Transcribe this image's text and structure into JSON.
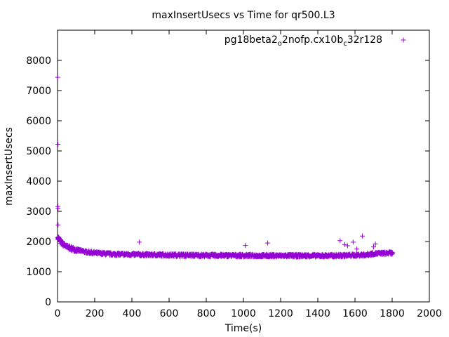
{
  "chart_data": {
    "type": "scatter",
    "title": "maxInsertUsecs vs Time for qr500.L3",
    "xlabel": "Time(s)",
    "ylabel": "maxInsertUsecs",
    "xlim": [
      0,
      2000
    ],
    "ylim": [
      0,
      9000
    ],
    "x_ticks": [
      0,
      200,
      400,
      600,
      800,
      1000,
      1200,
      1400,
      1600,
      1800,
      2000
    ],
    "y_ticks": [
      0,
      1000,
      2000,
      3000,
      4000,
      5000,
      6000,
      7000,
      8000
    ],
    "grid": false,
    "legend_position": "top-right",
    "marker": "plus",
    "series": [
      {
        "name": "pg18beta2_o2nofp.cx10b_c32r128",
        "legend": {
          "base": "pg18beta2",
          "sub1": "o",
          "mid": "2nofp.cx10b",
          "sub2": "c",
          "tail": "32r128"
        },
        "color": "#9400d3",
        "outliers": [
          [
            1,
            7440
          ],
          [
            2,
            5220
          ],
          [
            2,
            3160
          ],
          [
            3,
            3100
          ],
          [
            3,
            2550
          ],
          [
            5,
            2140
          ],
          [
            6,
            2060
          ],
          [
            440,
            1980
          ],
          [
            1010,
            1870
          ],
          [
            1130,
            1950
          ],
          [
            1520,
            2030
          ],
          [
            1545,
            1900
          ],
          [
            1560,
            1860
          ],
          [
            1590,
            1980
          ],
          [
            1610,
            1750
          ],
          [
            1640,
            2180
          ],
          [
            1700,
            1820
          ],
          [
            1710,
            1920
          ]
        ],
        "trend": [
          [
            0,
            2150
          ],
          [
            20,
            1950
          ],
          [
            50,
            1820
          ],
          [
            100,
            1720
          ],
          [
            150,
            1660
          ],
          [
            200,
            1620
          ],
          [
            300,
            1580
          ],
          [
            500,
            1560
          ],
          [
            800,
            1540
          ],
          [
            1200,
            1530
          ],
          [
            1500,
            1530
          ],
          [
            1660,
            1560
          ],
          [
            1700,
            1600
          ],
          [
            1800,
            1620
          ]
        ],
        "x_range": [
          0,
          1800
        ]
      }
    ]
  }
}
